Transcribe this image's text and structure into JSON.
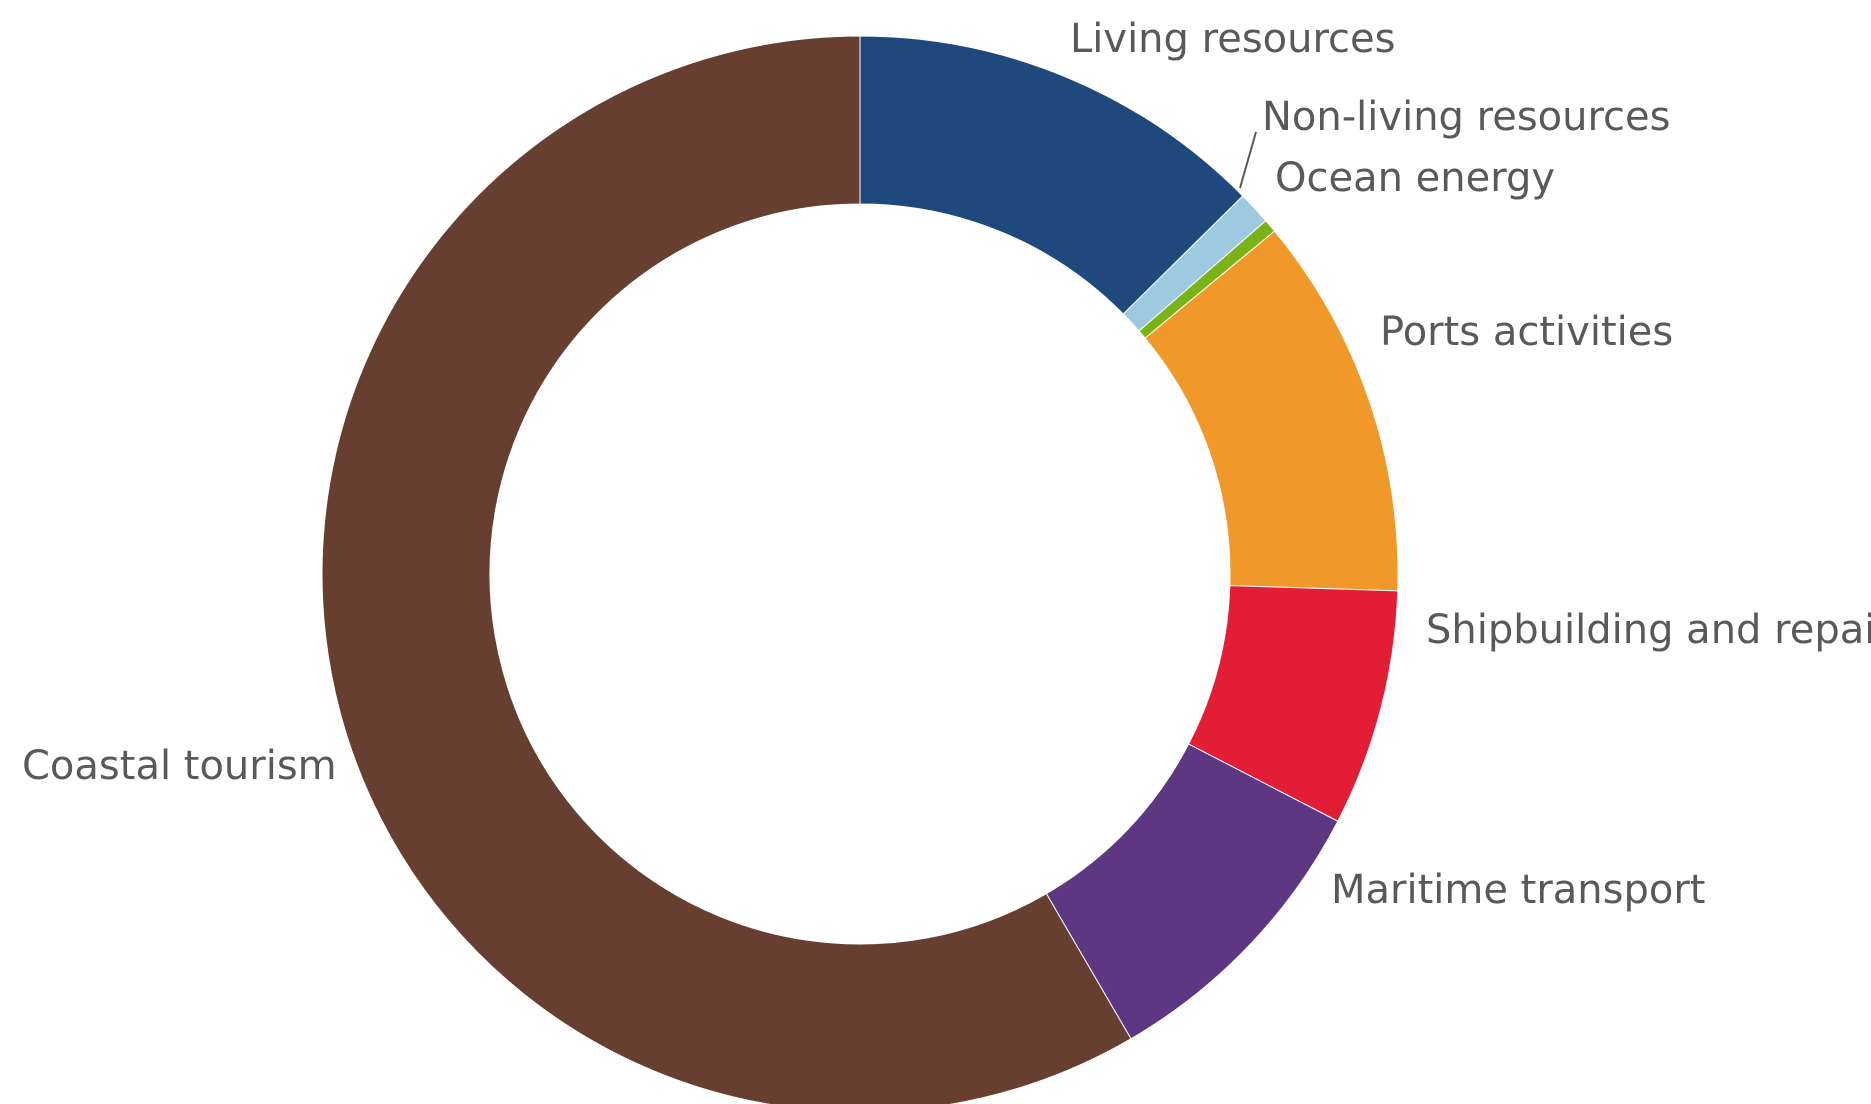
{
  "chart_data": {
    "type": "pie",
    "donut": true,
    "slices": [
      {
        "label": "Living resources",
        "value": 12.6,
        "color": "#1f497d"
      },
      {
        "label": "Non-living resources",
        "value": 1.0,
        "color": "#9ecae1"
      },
      {
        "label": "Ocean energy",
        "value": 0.4,
        "color": "#7ab317"
      },
      {
        "label": "Ports activities",
        "value": 11.5,
        "color": "#f0982a"
      },
      {
        "label": "Shipbuilding and repair",
        "value": 7.1,
        "color": "#e31d35"
      },
      {
        "label": "Maritime transport",
        "value": 9.0,
        "color": "#5e3783"
      },
      {
        "label": "Coastal tourism",
        "value": 58.4,
        "color": "#673f31"
      }
    ]
  }
}
